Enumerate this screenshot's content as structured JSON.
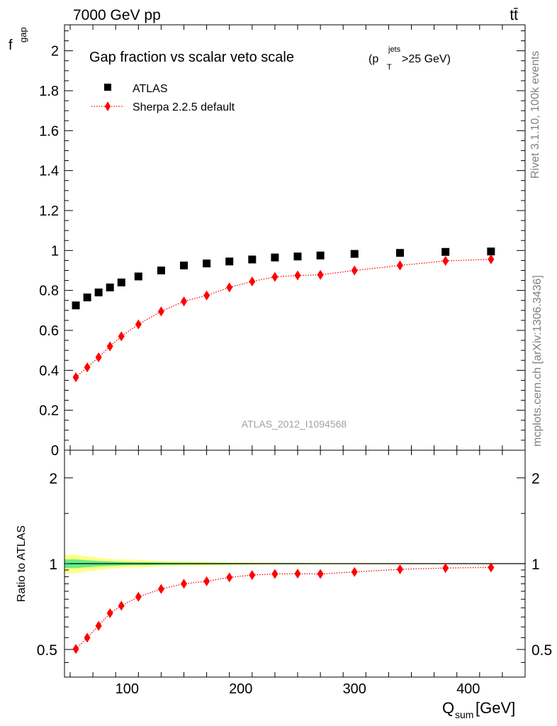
{
  "header": {
    "left": "7000 GeV pp",
    "right": "tt̄"
  },
  "side_labels": {
    "upper": "Rivet 3.1.10,  100k events",
    "lower": "mcplots.cern.ch [arXiv:1306.3436]"
  },
  "chart_data": [
    {
      "type": "scatter",
      "title": "Gap fraction vs scalar veto scale",
      "title_suffix": {
        "lead": "(p",
        "sup": "jets",
        "sub": "T",
        "tail": ">25 GeV)"
      },
      "ylabel": {
        "main": "f",
        "sub": "gap"
      },
      "xlim": [
        45,
        450
      ],
      "ylim": [
        0,
        2.13
      ],
      "yticks": [
        0,
        0.2,
        0.4,
        0.6,
        0.8,
        1,
        1.2,
        1.4,
        1.6,
        1.8,
        2
      ],
      "ytick_labels": [
        "0",
        "0.2",
        "0.4",
        "0.6",
        "0.8",
        "1",
        "1.2",
        "1.4",
        "1.6",
        "1.8",
        "2"
      ],
      "watermark": "ATLAS_2012_I1094568",
      "legend_position": "top-left",
      "x": [
        55,
        65,
        75,
        85,
        95,
        110,
        130,
        150,
        170,
        190,
        210,
        230,
        250,
        270,
        300,
        340,
        380,
        420
      ],
      "series": [
        {
          "name": "ATLAS",
          "color": "#000000",
          "marker": "square",
          "values": [
            0.725,
            0.765,
            0.79,
            0.815,
            0.84,
            0.87,
            0.9,
            0.925,
            0.935,
            0.945,
            0.955,
            0.965,
            0.97,
            0.975,
            0.983,
            0.988,
            0.993,
            0.995
          ]
        },
        {
          "name": "Sherpa 2.2.5 default",
          "color": "#ff0000",
          "marker": "diamond",
          "line": "dotted",
          "values": [
            0.365,
            0.415,
            0.465,
            0.52,
            0.57,
            0.63,
            0.695,
            0.745,
            0.775,
            0.815,
            0.845,
            0.868,
            0.875,
            0.878,
            0.9,
            0.925,
            0.948,
            0.956
          ]
        }
      ]
    },
    {
      "type": "scatter",
      "ylabel": "Ratio to ATLAS",
      "xlabel": {
        "main": "Q",
        "sub": "sum",
        "unit": " [GeV]"
      },
      "log_y": true,
      "ylim": [
        0.4,
        2.5
      ],
      "xticks": [
        100,
        200,
        300,
        400
      ],
      "xtick_labels": [
        "100",
        "200",
        "300",
        "400"
      ],
      "yticks": [
        0.5,
        1,
        2
      ],
      "ytick_labels": [
        "0.5",
        "1",
        "2"
      ],
      "x": [
        55,
        65,
        75,
        85,
        95,
        110,
        130,
        150,
        170,
        190,
        210,
        230,
        250,
        270,
        300,
        340,
        380,
        420
      ],
      "series": [
        {
          "name": "Sherpa 2.2.5 default",
          "color": "#ff0000",
          "marker": "diamond",
          "line": "dotted",
          "values": [
            0.502,
            0.55,
            0.605,
            0.67,
            0.712,
            0.765,
            0.815,
            0.85,
            0.867,
            0.895,
            0.912,
            0.92,
            0.922,
            0.92,
            0.935,
            0.955,
            0.965,
            0.97
          ]
        }
      ],
      "uncertainty_band": {
        "x": [
          45,
          55,
          65,
          75,
          85,
          95,
          110,
          130,
          150,
          170,
          190,
          210,
          230,
          250,
          270,
          300,
          340,
          380,
          420,
          450
        ],
        "outer": [
          0.075,
          0.075,
          0.06,
          0.05,
          0.04,
          0.035,
          0.03,
          0.022,
          0.018,
          0.015,
          0.012,
          0.01,
          0.008,
          0.007,
          0.006,
          0.005,
          0.004,
          0.004,
          0.003,
          0.003
        ],
        "inner": [
          0.035,
          0.035,
          0.028,
          0.022,
          0.018,
          0.015,
          0.012,
          0.01,
          0.008,
          0.007,
          0.006,
          0.005,
          0.004,
          0.004,
          0.003,
          0.003,
          0.002,
          0.002,
          0.002,
          0.002
        ],
        "outer_color": "#ffff88",
        "inner_color": "#66ee88"
      }
    }
  ]
}
